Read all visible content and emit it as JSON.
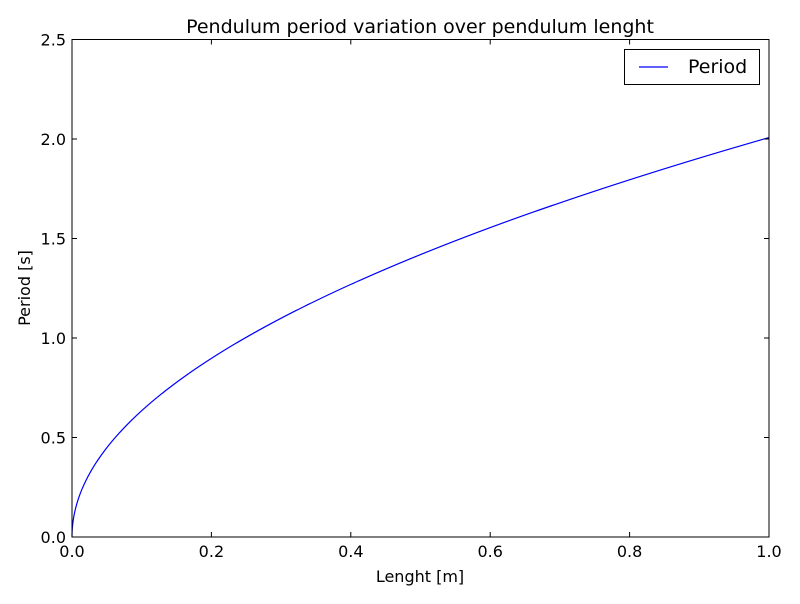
{
  "chart_data": {
    "type": "line",
    "title": "Pendulum period variation over pendulum lenght",
    "xlabel": "Lenght [m]",
    "ylabel": "Period [s]",
    "xlim": [
      0.0,
      1.0
    ],
    "ylim": [
      0.0,
      2.5
    ],
    "xticks": [
      0.0,
      0.2,
      0.4,
      0.6,
      0.8,
      1.0
    ],
    "xtick_labels": [
      "0.0",
      "0.2",
      "0.4",
      "0.6",
      "0.8",
      "1.0"
    ],
    "yticks": [
      0.0,
      0.5,
      1.0,
      1.5,
      2.0,
      2.5
    ],
    "ytick_labels": [
      "0.0",
      "0.5",
      "1.0",
      "1.5",
      "2.0",
      "2.5"
    ],
    "grid": false,
    "legend_position": "top-right",
    "series": [
      {
        "name": "Period",
        "color": "#0000ff",
        "x": [
          0.0,
          0.001,
          0.005,
          0.01,
          0.02,
          0.03,
          0.05,
          0.075,
          0.1,
          0.15,
          0.2,
          0.25,
          0.3,
          0.35,
          0.4,
          0.45,
          0.5,
          0.55,
          0.6,
          0.65,
          0.7,
          0.75,
          0.8,
          0.85,
          0.9,
          0.95,
          1.0
        ],
        "y": [
          0.0,
          0.063,
          0.142,
          0.2,
          0.284,
          0.347,
          0.449,
          0.55,
          0.635,
          0.777,
          0.897,
          1.003,
          1.099,
          1.187,
          1.269,
          1.346,
          1.419,
          1.488,
          1.554,
          1.618,
          1.679,
          1.738,
          1.795,
          1.85,
          1.904,
          1.956,
          2.007
        ]
      }
    ]
  }
}
